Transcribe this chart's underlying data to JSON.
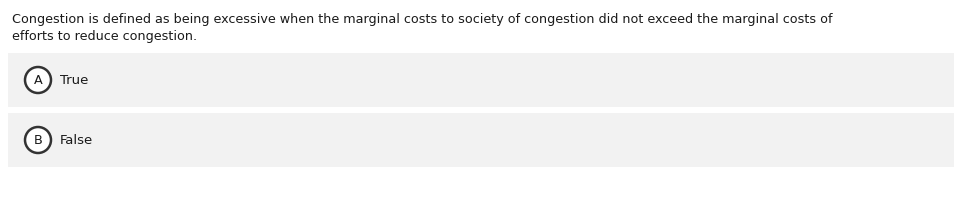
{
  "question_line1": "Congestion is defined as being excessive when the marginal costs to society of congestion did not exceed the marginal costs of",
  "question_line2": "efforts to reduce congestion.",
  "options": [
    {
      "label": "A",
      "text": "True"
    },
    {
      "label": "B",
      "text": "False"
    }
  ],
  "bg_color": "#ffffff",
  "option_bg_color": "#f2f2f2",
  "text_color": "#1a1a1a",
  "circle_edge_color": "#333333",
  "circle_face_color": "#ffffff",
  "question_fontsize": 9.2,
  "option_fontsize": 9.5,
  "label_fontsize": 9.2
}
